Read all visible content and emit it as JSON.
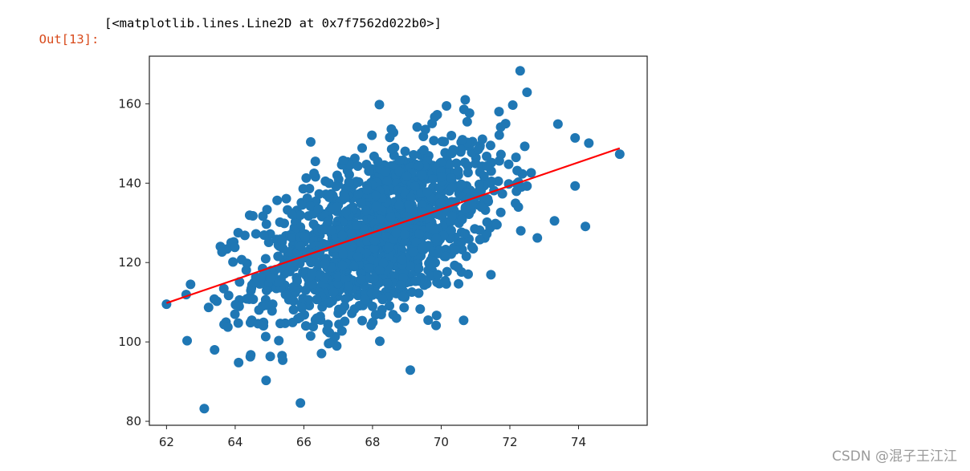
{
  "cell": {
    "prompt": "Out[13]:",
    "output": "[<matplotlib.lines.Line2D at 0x7f7562d022b0>]"
  },
  "watermark": "CSDN @混子王江江",
  "chart_data": {
    "type": "scatter",
    "title": "",
    "xlabel": "",
    "ylabel": "",
    "xlim": [
      61.5,
      76.0
    ],
    "ylim": [
      79,
      172
    ],
    "xticks": [
      62,
      64,
      66,
      68,
      70,
      72,
      74
    ],
    "yticks": [
      80,
      100,
      120,
      140,
      160
    ],
    "grid": false,
    "colors": {
      "points": "#1f77b4",
      "line": "#ff0000",
      "axis": "#222222"
    },
    "cloud": {
      "n": 1400,
      "x_mean": 68.2,
      "x_std": 1.8,
      "y_mean": 127.5,
      "y_std": 11.5,
      "corr": 0.5
    },
    "outliers": [
      {
        "x": 62.0,
        "y": 109.5
      },
      {
        "x": 62.6,
        "y": 100.3
      },
      {
        "x": 63.1,
        "y": 83.2
      },
      {
        "x": 65.9,
        "y": 84.6
      },
      {
        "x": 69.1,
        "y": 92.9
      },
      {
        "x": 64.9,
        "y": 90.3
      },
      {
        "x": 72.3,
        "y": 168.3
      },
      {
        "x": 72.5,
        "y": 162.9
      },
      {
        "x": 75.2,
        "y": 147.3
      },
      {
        "x": 74.2,
        "y": 129.1
      },
      {
        "x": 73.9,
        "y": 139.3
      },
      {
        "x": 73.9,
        "y": 151.4
      },
      {
        "x": 74.3,
        "y": 150.1
      },
      {
        "x": 73.4,
        "y": 154.9
      },
      {
        "x": 73.3,
        "y": 130.5
      },
      {
        "x": 72.8,
        "y": 126.2
      },
      {
        "x": 70.7,
        "y": 161.0
      },
      {
        "x": 66.2,
        "y": 150.4
      },
      {
        "x": 62.7,
        "y": 114.5
      },
      {
        "x": 63.4,
        "y": 98.0
      },
      {
        "x": 64.1,
        "y": 94.8
      },
      {
        "x": 68.2,
        "y": 159.8
      }
    ],
    "fit_line": {
      "x": [
        62.0,
        75.2
      ],
      "y": [
        109.8,
        148.8
      ]
    }
  }
}
